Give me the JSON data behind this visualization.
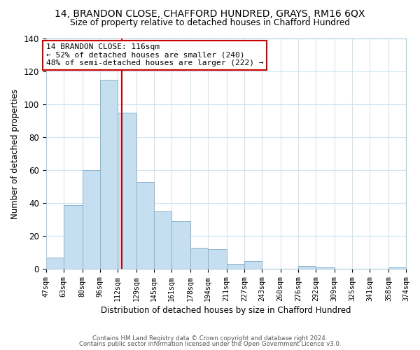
{
  "title": "14, BRANDON CLOSE, CHAFFORD HUNDRED, GRAYS, RM16 6QX",
  "subtitle": "Size of property relative to detached houses in Chafford Hundred",
  "xlabel": "Distribution of detached houses by size in Chafford Hundred",
  "ylabel": "Number of detached properties",
  "bar_edges": [
    47,
    63,
    80,
    96,
    112,
    129,
    145,
    161,
    178,
    194,
    211,
    227,
    243,
    260,
    276,
    292,
    309,
    325,
    341,
    358,
    374
  ],
  "bar_heights": [
    7,
    39,
    60,
    115,
    95,
    53,
    35,
    29,
    13,
    12,
    3,
    5,
    0,
    0,
    2,
    1,
    0,
    0,
    0,
    1
  ],
  "bar_color": "#c6dff0",
  "bar_edge_color": "#8ab4cc",
  "vline_x": 116,
  "vline_color": "#cc0000",
  "ylim": [
    0,
    140
  ],
  "yticks": [
    0,
    20,
    40,
    60,
    80,
    100,
    120,
    140
  ],
  "xtick_labels": [
    "47sqm",
    "63sqm",
    "80sqm",
    "96sqm",
    "112sqm",
    "129sqm",
    "145sqm",
    "161sqm",
    "178sqm",
    "194sqm",
    "211sqm",
    "227sqm",
    "243sqm",
    "260sqm",
    "276sqm",
    "292sqm",
    "309sqm",
    "325sqm",
    "341sqm",
    "358sqm",
    "374sqm"
  ],
  "annotation_title": "14 BRANDON CLOSE: 116sqm",
  "annotation_line1": "← 52% of detached houses are smaller (240)",
  "annotation_line2": "48% of semi-detached houses are larger (222) →",
  "annotation_box_color": "#ffffff",
  "annotation_box_edge": "#cc0000",
  "footnote1": "Contains HM Land Registry data © Crown copyright and database right 2024.",
  "footnote2": "Contains public sector information licensed under the Open Government Licence v3.0.",
  "bg_color": "#ffffff",
  "grid_color": "#d0e4f0"
}
